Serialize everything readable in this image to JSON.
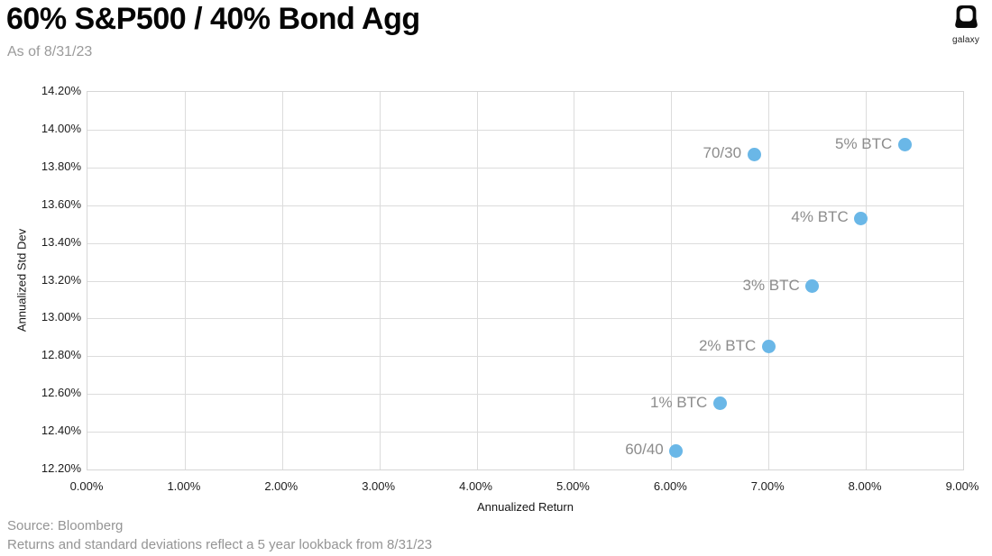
{
  "header": {
    "title": "60% S&P500 / 40% Bond Agg",
    "subtitle": "As of 8/31/23",
    "logo_text": "galaxy"
  },
  "chart_data": {
    "type": "scatter",
    "title": "60% S&P500 / 40% Bond Agg",
    "xlabel": "Annualized Return",
    "ylabel": "Annualized Std Dev",
    "xlim": [
      0.0,
      9.0
    ],
    "ylim": [
      12.2,
      14.2
    ],
    "x_ticks": [
      "0.00%",
      "1.00%",
      "2.00%",
      "3.00%",
      "4.00%",
      "5.00%",
      "6.00%",
      "7.00%",
      "8.00%",
      "9.00%"
    ],
    "y_ticks": [
      "12.20%",
      "12.40%",
      "12.60%",
      "12.80%",
      "13.00%",
      "13.20%",
      "13.40%",
      "13.60%",
      "13.80%",
      "14.00%",
      "14.20%"
    ],
    "grid": true,
    "legend": "none",
    "point_color": "#6ab7e7",
    "point_label_color": "#8c8c8c",
    "points": [
      {
        "label": "60/40",
        "x": 6.05,
        "y": 12.3
      },
      {
        "label": "1% BTC",
        "x": 6.5,
        "y": 12.55
      },
      {
        "label": "2% BTC",
        "x": 7.0,
        "y": 12.85
      },
      {
        "label": "3% BTC",
        "x": 7.45,
        "y": 13.17
      },
      {
        "label": "4% BTC",
        "x": 7.95,
        "y": 13.53
      },
      {
        "label": "70/30",
        "x": 6.85,
        "y": 13.87
      },
      {
        "label": "5% BTC",
        "x": 8.4,
        "y": 13.92
      }
    ]
  },
  "footer": {
    "source": "Source: Bloomberg",
    "note": "Returns and standard deviations reflect a 5 year lookback from 8/31/23"
  }
}
